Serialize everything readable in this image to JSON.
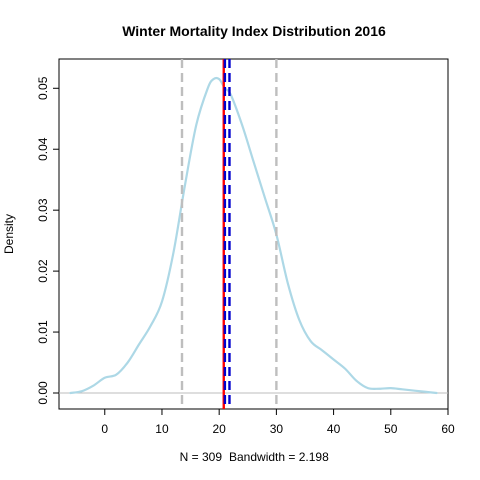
{
  "chart_data": {
    "type": "line",
    "title": "Winter Mortality Index Distribution 2016",
    "xlabel_n": "N = 309",
    "xlabel_bw": "Bandwidth = 2.198",
    "ylabel": "Density",
    "xlim": [
      -8,
      60
    ],
    "ylim": [
      0,
      0.053
    ],
    "xticks": [
      0,
      10,
      20,
      30,
      40,
      50,
      60
    ],
    "yticks": [
      0.0,
      0.01,
      0.02,
      0.03,
      0.04,
      0.05
    ],
    "ytick_labels": [
      "0.00",
      "0.01",
      "0.02",
      "0.03",
      "0.04",
      "0.05"
    ],
    "curve_color": "#add8e6",
    "baseline_color": "#bebebe",
    "series": [
      {
        "x": [
          -6,
          -4,
          -2,
          0,
          2,
          4,
          6,
          8,
          10,
          12,
          14,
          16,
          18,
          19,
          20,
          21,
          22,
          24,
          26,
          28,
          30,
          32,
          34,
          36,
          38,
          40,
          42,
          44,
          46,
          48,
          50,
          52,
          54,
          56,
          58
        ],
        "y": [
          0.0,
          0.0003,
          0.0012,
          0.0025,
          0.003,
          0.005,
          0.008,
          0.011,
          0.015,
          0.023,
          0.034,
          0.044,
          0.05,
          0.0515,
          0.0515,
          0.05,
          0.049,
          0.044,
          0.038,
          0.032,
          0.026,
          0.018,
          0.012,
          0.0085,
          0.007,
          0.0055,
          0.004,
          0.002,
          0.0008,
          0.0007,
          0.0008,
          0.0006,
          0.0004,
          0.0002,
          0.0
        ]
      }
    ],
    "vlines": [
      {
        "x": 13.5,
        "color": "#bebebe",
        "style": "dashed"
      },
      {
        "x": 20.8,
        "color": "#ff0000",
        "style": "solid"
      },
      {
        "x": 21.0,
        "color": "#0000cd",
        "style": "dashed"
      },
      {
        "x": 21.8,
        "color": "#0000cd",
        "style": "dashed"
      },
      {
        "x": 30.0,
        "color": "#bebebe",
        "style": "dashed"
      }
    ]
  }
}
